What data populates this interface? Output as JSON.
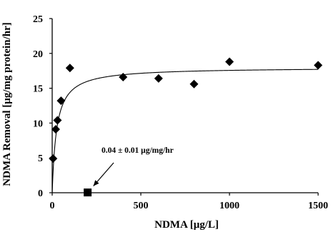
{
  "chart_data": {
    "type": "scatter",
    "xlabel": "NDMA [μg/L]",
    "ylabel": "NDMA Removal [μg/mg protein/hr]",
    "xlim": [
      0,
      1500
    ],
    "ylim": [
      0,
      25
    ],
    "x_ticks": [
      0,
      500,
      1000,
      1500
    ],
    "y_ticks": [
      0,
      5,
      10,
      15,
      20,
      25
    ],
    "grid": false,
    "legend": "none",
    "series": [
      {
        "marker": "diamond",
        "color": "#000000",
        "points": [
          {
            "x": 5,
            "y": 4.9
          },
          {
            "x": 20,
            "y": 9.1
          },
          {
            "x": 30,
            "y": 10.4
          },
          {
            "x": 50,
            "y": 13.2
          },
          {
            "x": 100,
            "y": 17.9
          },
          {
            "x": 400,
            "y": 16.6
          },
          {
            "x": 600,
            "y": 16.4
          },
          {
            "x": 800,
            "y": 15.6
          },
          {
            "x": 1000,
            "y": 18.8
          },
          {
            "x": 1500,
            "y": 18.3
          }
        ]
      },
      {
        "marker": "square",
        "color": "#000000",
        "points": [
          {
            "x": 200,
            "y": 0.04
          }
        ]
      }
    ],
    "fit_curve": {
      "model": "michaelis-menten",
      "vmax": 18.0,
      "km": 25,
      "color": "#000000"
    },
    "annotation": {
      "text": "0.04 ± 0.01 μg/mg/hr",
      "target": {
        "x": 200,
        "y": 0.04
      }
    }
  }
}
